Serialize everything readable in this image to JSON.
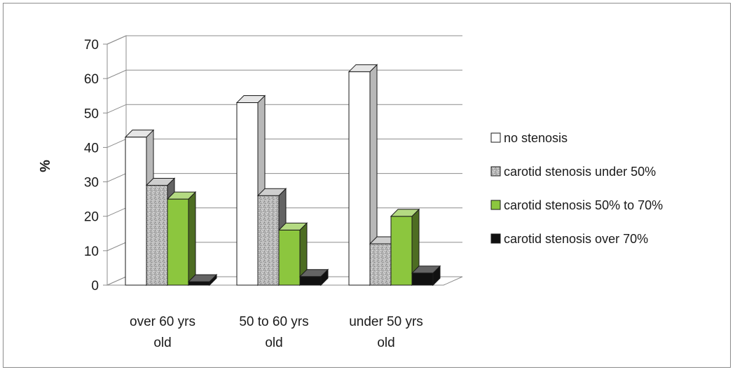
{
  "chart_data": {
    "type": "bar",
    "title": "",
    "xlabel": "",
    "ylabel": "%",
    "ylim": [
      0,
      70
    ],
    "yticks": [
      0,
      10,
      20,
      30,
      40,
      50,
      60,
      70
    ],
    "grid": true,
    "style": "3d-clustered-column",
    "legend_position": "right",
    "categories": [
      "over 60 yrs old",
      "50 to 60 yrs old",
      "under 50 yrs old"
    ],
    "series": [
      {
        "name": "no stenosis",
        "values": [
          43,
          53,
          62
        ],
        "color": "#ffffff"
      },
      {
        "name": "carotid stenosis under 50%",
        "values": [
          29,
          26,
          12
        ],
        "color": "#b4b4b4"
      },
      {
        "name": "carotid stenosis 50% to 70%",
        "values": [
          25,
          16,
          20
        ],
        "color": "#8cc63e"
      },
      {
        "name": "carotid stenosis over 70%",
        "values": [
          1,
          2.5,
          3.5
        ],
        "color": "#111111"
      }
    ]
  }
}
